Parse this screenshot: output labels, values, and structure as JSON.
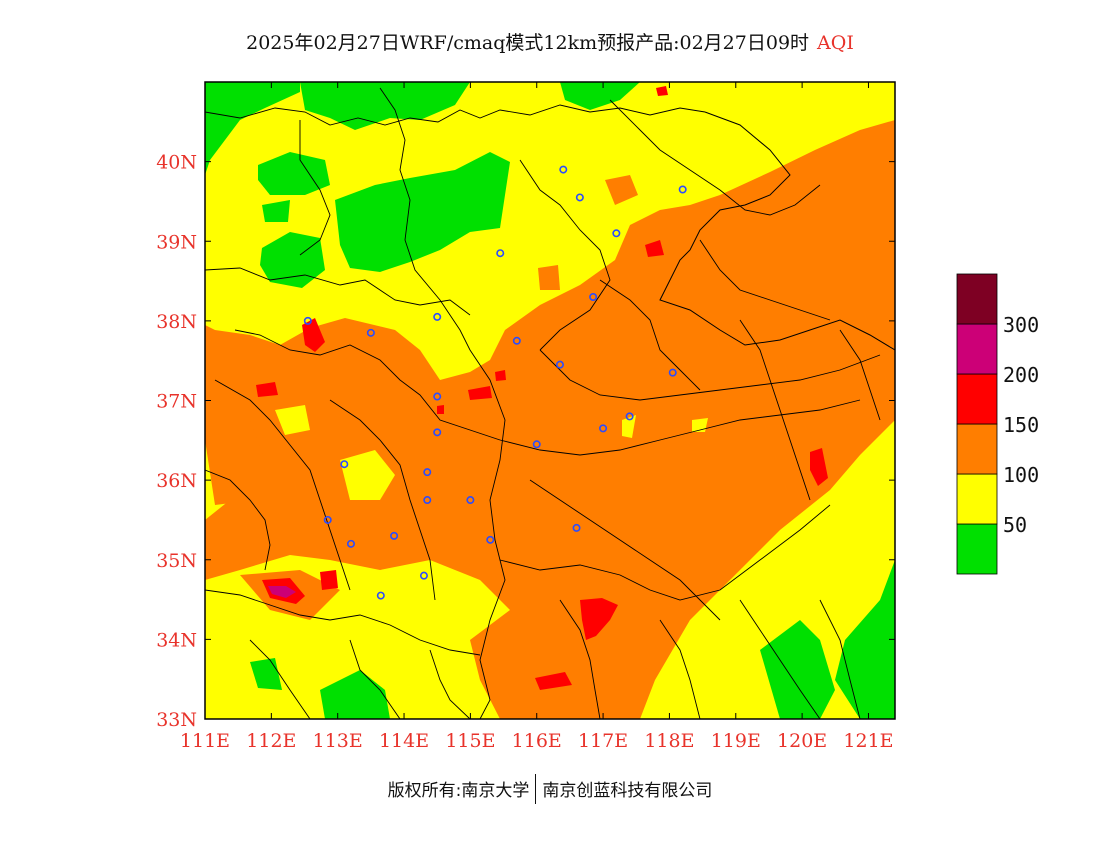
{
  "title": {
    "main": "2025年02月27日WRF/cmaq模式12km预报产品:02月27日09时",
    "variable": "AQI"
  },
  "map": {
    "lon_range": [
      111,
      121.4
    ],
    "lat_range": [
      33,
      41
    ],
    "lon_ticks": [
      "111E",
      "112E",
      "113E",
      "114E",
      "115E",
      "116E",
      "117E",
      "118E",
      "119E",
      "120E",
      "121E"
    ],
    "lat_ticks": [
      "33N",
      "34N",
      "35N",
      "36N",
      "37N",
      "38N",
      "39N",
      "40N"
    ],
    "cities": [
      [
        116.4,
        39.9
      ],
      [
        117.2,
        39.1
      ],
      [
        116.65,
        39.55
      ],
      [
        118.2,
        39.65
      ],
      [
        115.45,
        38.85
      ],
      [
        114.5,
        38.05
      ],
      [
        115.7,
        37.75
      ],
      [
        116.35,
        37.45
      ],
      [
        116.85,
        38.3
      ],
      [
        112.55,
        38.0
      ],
      [
        113.5,
        37.85
      ],
      [
        114.5,
        37.05
      ],
      [
        114.5,
        36.6
      ],
      [
        114.35,
        36.1
      ],
      [
        113.1,
        36.2
      ],
      [
        112.85,
        35.5
      ],
      [
        113.2,
        35.2
      ],
      [
        113.85,
        35.3
      ],
      [
        114.35,
        35.75
      ],
      [
        115.0,
        35.75
      ],
      [
        115.3,
        35.25
      ],
      [
        116.0,
        36.45
      ],
      [
        117.0,
        36.65
      ],
      [
        117.4,
        36.8
      ],
      [
        118.05,
        37.35
      ],
      [
        116.6,
        35.4
      ],
      [
        114.3,
        34.8
      ],
      [
        113.65,
        34.55
      ]
    ]
  },
  "colorbar": {
    "labels": [
      "50",
      "100",
      "150",
      "200",
      "300"
    ],
    "colors": [
      "#00e000",
      "#ffff00",
      "#ff7e00",
      "#ff0000",
      "#cc0077",
      "#7e0023"
    ]
  },
  "footer": {
    "left": "版权所有:南京大学",
    "right": "南京创蓝科技有限公司"
  }
}
